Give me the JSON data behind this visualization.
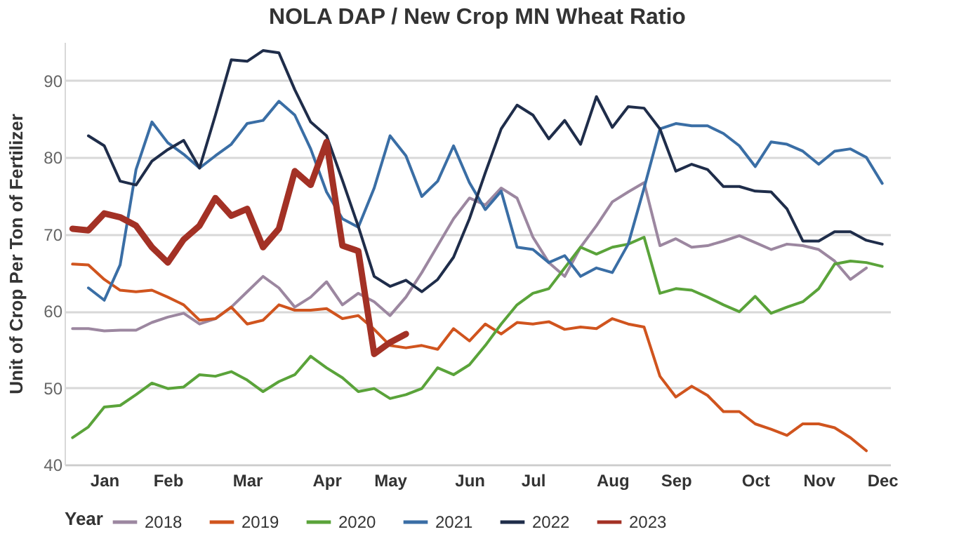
{
  "chart_data": {
    "type": "line",
    "title": "NOLA DAP / New Crop MN Wheat Ratio",
    "ylabel": "Unit of Crop Per Ton of Fertilizer",
    "legend_title": "Year",
    "legend": "bottom",
    "grid": "y",
    "marker": "none",
    "line_style": "solid",
    "categories": [
      null,
      null,
      "Jan",
      null,
      null,
      null,
      "Feb",
      null,
      null,
      null,
      null,
      "Mar",
      null,
      null,
      null,
      null,
      "Apr",
      null,
      null,
      null,
      "May",
      null,
      null,
      null,
      null,
      "Jun",
      null,
      null,
      null,
      "Jul",
      null,
      null,
      null,
      null,
      "Aug",
      null,
      null,
      null,
      "Sep",
      null,
      null,
      null,
      null,
      "Oct",
      null,
      null,
      null,
      "Nov",
      null,
      null,
      null,
      "Dec"
    ],
    "ylim": [
      40,
      95
    ],
    "yticks": [
      40,
      50,
      60,
      70,
      80,
      90
    ],
    "series": [
      {
        "name": "2018",
        "color": "#9c87a0",
        "values": [
          57.7,
          57.7,
          57.4,
          57.5,
          57.5,
          58.5,
          59.2,
          59.7,
          58.3,
          59.0,
          60.5,
          62.5,
          64.5,
          63.0,
          60.5,
          61.8,
          63.8,
          60.8,
          62.3,
          61.2,
          59.4,
          61.8,
          65,
          68.5,
          72,
          74.7,
          73.8,
          76,
          74.7,
          69.6,
          66.3,
          64.5,
          68.3,
          71.1,
          74.2,
          75.5,
          76.7,
          68.5,
          69.4,
          68.3,
          68.5,
          69.1,
          69.8,
          68.9,
          68.0,
          68.7,
          68.5,
          68.0,
          66.5,
          64.1,
          65.6,
          null
        ]
      },
      {
        "name": "2019",
        "color": "#d0541e",
        "values": [
          66.1,
          66.0,
          64.1,
          62.7,
          62.5,
          62.7,
          61.8,
          60.8,
          58.8,
          59.0,
          60.5,
          58.3,
          58.8,
          60.8,
          60.1,
          60.1,
          60.3,
          59.0,
          59.4,
          57.6,
          55.5,
          55.2,
          55.5,
          55.0,
          57.7,
          56.1,
          58.3,
          57.0,
          58.5,
          58.3,
          58.6,
          57.6,
          57.9,
          57.7,
          59.0,
          58.3,
          57.9,
          51.5,
          48.8,
          50.2,
          49.0,
          46.9,
          46.9,
          45.3,
          44.6,
          43.8,
          45.3,
          45.3,
          44.8,
          43.5,
          41.8,
          null
        ]
      },
      {
        "name": "2020",
        "color": "#5aa33a",
        "values": [
          43.5,
          44.9,
          47.5,
          47.7,
          49.1,
          50.6,
          49.9,
          50.1,
          51.7,
          51.5,
          52.1,
          51.0,
          49.5,
          50.8,
          51.7,
          54.1,
          52.6,
          51.3,
          49.5,
          49.9,
          48.6,
          49.1,
          49.9,
          52.6,
          51.7,
          53.0,
          55.5,
          58.3,
          60.8,
          62.3,
          62.9,
          65.6,
          68.3,
          67.4,
          68.3,
          68.7,
          69.6,
          62.3,
          62.9,
          62.7,
          61.8,
          60.8,
          59.9,
          61.9,
          59.7,
          60.5,
          61.2,
          62.9,
          66.1,
          66.5,
          66.3,
          65.8
        ]
      },
      {
        "name": "2021",
        "color": "#3a6ea5",
        "values": [
          null,
          63.0,
          61.4,
          66,
          78.4,
          84.6,
          81.9,
          80.4,
          78.6,
          80.2,
          81.7,
          84.4,
          84.8,
          87.3,
          85.5,
          81.1,
          75.5,
          72.0,
          70.9,
          76,
          82.8,
          80.2,
          74.9,
          76.9,
          81.5,
          76.7,
          73.2,
          75.6,
          68.3,
          68.0,
          66.3,
          67.2,
          64.5,
          65.6,
          65.0,
          68.7,
          76,
          83.7,
          84.4,
          84.1,
          84.1,
          83.1,
          81.5,
          78.8,
          82.0,
          81.7,
          80.8,
          79.1,
          80.8,
          81.1,
          80.0,
          76.6
        ]
      },
      {
        "name": "2022",
        "color": "#1f2d4a",
        "values": [
          null,
          82.8,
          81.5,
          76.9,
          76.4,
          79.5,
          81.0,
          82.2,
          78.6,
          85.5,
          92.7,
          92.5,
          93.9,
          93.6,
          88.8,
          84.6,
          82.8,
          77,
          71,
          64.5,
          63.2,
          64,
          62.5,
          64.1,
          67,
          72,
          78,
          83.7,
          86.8,
          85.5,
          82.4,
          84.8,
          81.7,
          87.9,
          83.9,
          86.6,
          86.4,
          83.7,
          78.2,
          79.1,
          78.4,
          76.2,
          76.2,
          75.6,
          75.5,
          73.3,
          69.1,
          69.1,
          70.3,
          70.3,
          69.2,
          68.7
        ]
      },
      {
        "name": "2023",
        "color": "#a33125",
        "values": [
          70.7,
          70.5,
          72.7,
          72.2,
          71.1,
          68.3,
          66.3,
          69.3,
          71.1,
          74.7,
          72.4,
          73.3,
          68.3,
          70.7,
          78.2,
          76.4,
          82.0,
          68.5,
          67.8,
          54.4,
          55.9,
          57.0,
          null,
          null,
          null,
          null,
          null,
          null,
          null,
          null,
          null,
          null,
          null,
          null,
          null,
          null,
          null,
          null,
          null,
          null,
          null,
          null,
          null,
          null,
          null,
          null,
          null,
          null,
          null,
          null,
          null,
          null
        ]
      }
    ]
  }
}
